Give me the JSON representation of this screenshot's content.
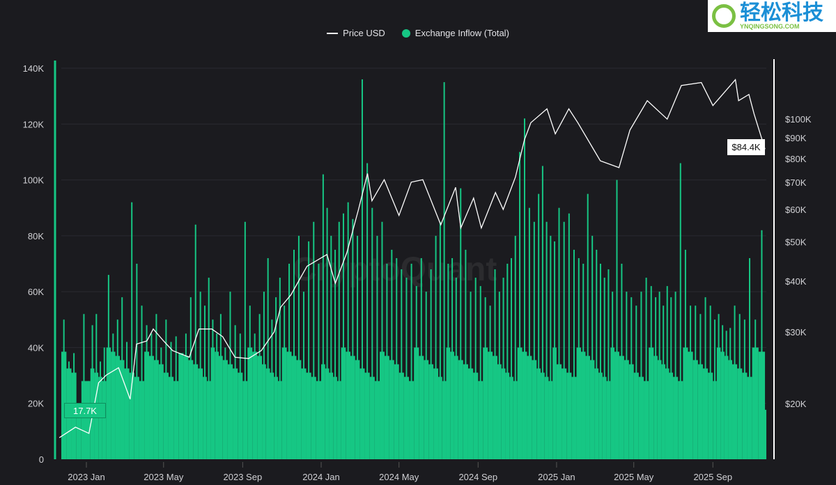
{
  "chart_data": {
    "type": "bar+line",
    "legend": [
      {
        "name": "Price USD",
        "color": "#ffffff",
        "kind": "line"
      },
      {
        "name": "Exchange Inflow (Total)",
        "color": "#16c784",
        "kind": "bar"
      }
    ],
    "legend_position": "top-center",
    "watermark": "CryptoQuant",
    "grid": true,
    "x_ticks": [
      "2023 Jan",
      "2023 May",
      "2023 Sep",
      "2024 Jan",
      "2024 May",
      "2024 Sep",
      "2025 Jan",
      "2025 May",
      "2025 Sep"
    ],
    "x_tick_dates": [
      "2023-01-01",
      "2023-05-01",
      "2023-09-01",
      "2024-01-01",
      "2024-05-01",
      "2024-09-01",
      "2025-01-01",
      "2025-05-01",
      "2025-09-01"
    ],
    "y_left": {
      "ticks": [
        "0",
        "20K",
        "40K",
        "60K",
        "80K",
        "100K",
        "120K",
        "140K"
      ],
      "tick_values": [
        0,
        20000,
        40000,
        60000,
        80000,
        100000,
        120000,
        140000
      ],
      "range": [
        0,
        140000
      ],
      "scale": "linear"
    },
    "y_right": {
      "ticks": [
        "$20K",
        "$30K",
        "$40K",
        "$50K",
        "$60K",
        "$70K",
        "$80K",
        "$90K",
        "$100K"
      ],
      "tick_values": [
        20000,
        30000,
        40000,
        50000,
        60000,
        70000,
        80000,
        90000,
        100000
      ],
      "scale": "log"
    },
    "current_inflow_label": "17.7K",
    "current_price_label": "$84.4K",
    "inflow_weekly_by_month": [
      {
        "month": "2022-11",
        "values": [
          53000,
          50000
        ]
      },
      {
        "month": "2022-12",
        "values": [
          35000,
          38000,
          19000,
          52000
        ]
      },
      {
        "month": "2023-01",
        "values": [
          28000,
          48000,
          52000,
          35000,
          40000
        ]
      },
      {
        "month": "2023-02",
        "values": [
          66000,
          45000,
          50000,
          58000
        ]
      },
      {
        "month": "2023-03",
        "values": [
          42000,
          92000,
          70000,
          55000
        ]
      },
      {
        "month": "2023-04",
        "values": [
          48000,
          45000,
          52000,
          40000
        ]
      },
      {
        "month": "2023-05",
        "values": [
          50000,
          42000,
          44000,
          38000
        ]
      },
      {
        "month": "2023-06",
        "values": [
          45000,
          58000,
          84000,
          60000
        ]
      },
      {
        "month": "2023-07",
        "values": [
          55000,
          65000,
          50000,
          45000,
          52000
        ]
      },
      {
        "month": "2023-08",
        "values": [
          40000,
          60000,
          48000,
          45000
        ]
      },
      {
        "month": "2023-09",
        "values": [
          85000,
          55000,
          45000,
          52000
        ]
      },
      {
        "month": "2023-10",
        "values": [
          60000,
          72000,
          50000,
          58000,
          65000
        ]
      },
      {
        "month": "2023-11",
        "values": [
          55000,
          70000,
          75000,
          80000
        ]
      },
      {
        "month": "2023-12",
        "values": [
          60000,
          78000,
          85000,
          70000
        ]
      },
      {
        "month": "2024-01",
        "values": [
          102000,
          90000,
          80000,
          75000,
          85000
        ]
      },
      {
        "month": "2024-02",
        "values": [
          88000,
          92000,
          86000,
          80000
        ]
      },
      {
        "month": "2024-03",
        "values": [
          136000,
          106000,
          90000,
          80000
        ]
      },
      {
        "month": "2024-04",
        "values": [
          85000,
          70000,
          75000,
          72000
        ]
      },
      {
        "month": "2024-05",
        "values": [
          68000,
          65000,
          70000,
          62000
        ]
      },
      {
        "month": "2024-06",
        "values": [
          72000,
          60000,
          68000,
          80000
        ]
      },
      {
        "month": "2024-07",
        "values": [
          85000,
          135000,
          70000,
          72000,
          65000
        ]
      },
      {
        "month": "2024-08",
        "values": [
          97000,
          75000,
          60000,
          65000
        ]
      },
      {
        "month": "2024-09",
        "values": [
          62000,
          58000,
          55000,
          68000
        ]
      },
      {
        "month": "2024-10",
        "values": [
          60000,
          65000,
          70000,
          72000,
          80000
        ]
      },
      {
        "month": "2024-11",
        "values": [
          110000,
          122000,
          90000,
          85000
        ]
      },
      {
        "month": "2024-12",
        "values": [
          95000,
          105000,
          85000,
          80000,
          78000
        ]
      },
      {
        "month": "2025-01",
        "values": [
          90000,
          85000,
          88000,
          75000
        ]
      },
      {
        "month": "2025-02",
        "values": [
          72000,
          70000,
          95000,
          80000
        ]
      },
      {
        "month": "2025-03",
        "values": [
          75000,
          70000,
          65000,
          68000,
          60000
        ]
      },
      {
        "month": "2025-04",
        "values": [
          100000,
          70000,
          60000,
          58000
        ]
      },
      {
        "month": "2025-05",
        "values": [
          55000,
          60000,
          65000,
          62000
        ]
      },
      {
        "month": "2025-06",
        "values": [
          58000,
          60000,
          55000,
          62000,
          58000
        ]
      },
      {
        "month": "2025-07",
        "values": [
          60000,
          106000,
          75000,
          55000
        ]
      },
      {
        "month": "2025-08",
        "values": [
          55000,
          52000,
          58000,
          55000
        ]
      },
      {
        "month": "2025-09",
        "values": [
          50000,
          52000,
          48000,
          46000,
          47000
        ]
      },
      {
        "month": "2025-10",
        "values": [
          55000,
          52000,
          50000,
          72000
        ]
      },
      {
        "month": "2025-11",
        "values": [
          50000,
          82000,
          17700
        ]
      }
    ],
    "price": [
      [
        "2022-11-20",
        16500
      ],
      [
        "2022-12-15",
        17500
      ],
      [
        "2023-01-05",
        16900
      ],
      [
        "2023-01-20",
        22500
      ],
      [
        "2023-02-01",
        23500
      ],
      [
        "2023-02-20",
        24500
      ],
      [
        "2023-03-10",
        20500
      ],
      [
        "2023-03-20",
        28000
      ],
      [
        "2023-04-05",
        28500
      ],
      [
        "2023-04-15",
        30500
      ],
      [
        "2023-05-01",
        28500
      ],
      [
        "2023-05-15",
        27000
      ],
      [
        "2023-06-10",
        26000
      ],
      [
        "2023-06-25",
        30500
      ],
      [
        "2023-07-15",
        30500
      ],
      [
        "2023-08-01",
        29200
      ],
      [
        "2023-08-20",
        26000
      ],
      [
        "2023-09-10",
        25800
      ],
      [
        "2023-09-30",
        27000
      ],
      [
        "2023-10-20",
        30000
      ],
      [
        "2023-10-30",
        34500
      ],
      [
        "2023-11-15",
        37000
      ],
      [
        "2023-12-10",
        43500
      ],
      [
        "2024-01-10",
        46500
      ],
      [
        "2024-01-23",
        39500
      ],
      [
        "2024-02-10",
        47000
      ],
      [
        "2024-02-28",
        60000
      ],
      [
        "2024-03-13",
        73500
      ],
      [
        "2024-03-20",
        63000
      ],
      [
        "2024-04-08",
        71000
      ],
      [
        "2024-05-01",
        58000
      ],
      [
        "2024-05-20",
        70000
      ],
      [
        "2024-06-07",
        71000
      ],
      [
        "2024-07-05",
        55000
      ],
      [
        "2024-07-28",
        68000
      ],
      [
        "2024-08-05",
        54000
      ],
      [
        "2024-08-25",
        64000
      ],
      [
        "2024-09-06",
        54000
      ],
      [
        "2024-09-28",
        66000
      ],
      [
        "2024-10-10",
        60000
      ],
      [
        "2024-10-29",
        72000
      ],
      [
        "2024-11-12",
        89000
      ],
      [
        "2024-11-22",
        98000
      ],
      [
        "2024-12-17",
        106000
      ],
      [
        "2024-12-30",
        92000
      ],
      [
        "2025-01-20",
        106000
      ],
      [
        "2025-02-03",
        98000
      ],
      [
        "2025-02-28",
        84000
      ],
      [
        "2025-03-10",
        79000
      ],
      [
        "2025-04-08",
        76000
      ],
      [
        "2025-04-25",
        94000
      ],
      [
        "2025-05-22",
        111000
      ],
      [
        "2025-06-22",
        100000
      ],
      [
        "2025-07-14",
        121000
      ],
      [
        "2025-08-14",
        123000
      ],
      [
        "2025-09-01",
        108000
      ],
      [
        "2025-10-06",
        125000
      ],
      [
        "2025-10-11",
        111000
      ],
      [
        "2025-10-27",
        115000
      ],
      [
        "2025-11-04",
        103000
      ],
      [
        "2025-11-21",
        84400
      ]
    ]
  },
  "overlay_logo": {
    "cn": "轻松科技",
    "en": "YNQINGSONG.COM"
  }
}
